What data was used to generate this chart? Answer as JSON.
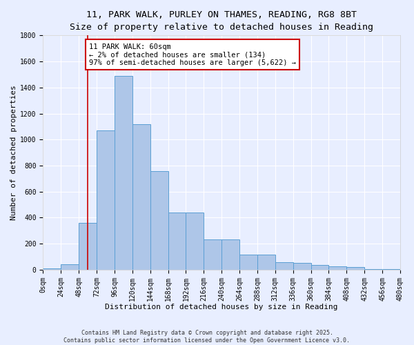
{
  "title_line1": "11, PARK WALK, PURLEY ON THAMES, READING, RG8 8BT",
  "title_line2": "Size of property relative to detached houses in Reading",
  "xlabel": "Distribution of detached houses by size in Reading",
  "ylabel": "Number of detached properties",
  "bin_edges": [
    0,
    24,
    48,
    72,
    96,
    120,
    144,
    168,
    192,
    216,
    240,
    264,
    288,
    312,
    336,
    360,
    384,
    408,
    432,
    456,
    480
  ],
  "bar_heights": [
    10,
    40,
    360,
    1070,
    1490,
    1120,
    760,
    440,
    440,
    230,
    230,
    115,
    115,
    55,
    50,
    35,
    25,
    20,
    5,
    5
  ],
  "bar_color": "#aec6e8",
  "bar_edge_color": "#5a9fd4",
  "property_size_sqm": 60,
  "annotation_text": "11 PARK WALK: 60sqm\n← 2% of detached houses are smaller (134)\n97% of semi-detached houses are larger (5,622) →",
  "vline_color": "#cc0000",
  "annotation_box_edge_color": "#cc0000",
  "annotation_box_face_color": "#ffffff",
  "ylim": [
    0,
    1800
  ],
  "yticks": [
    0,
    200,
    400,
    600,
    800,
    1000,
    1200,
    1400,
    1600,
    1800
  ],
  "background_color": "#e8eeff",
  "grid_color": "#ffffff",
  "footer_text": "Contains HM Land Registry data © Crown copyright and database right 2025.\nContains public sector information licensed under the Open Government Licence v3.0.",
  "title_fontsize": 9.5,
  "subtitle_fontsize": 8.5,
  "axis_label_fontsize": 8,
  "tick_fontsize": 7,
  "annotation_fontsize": 7.5,
  "footer_fontsize": 6
}
